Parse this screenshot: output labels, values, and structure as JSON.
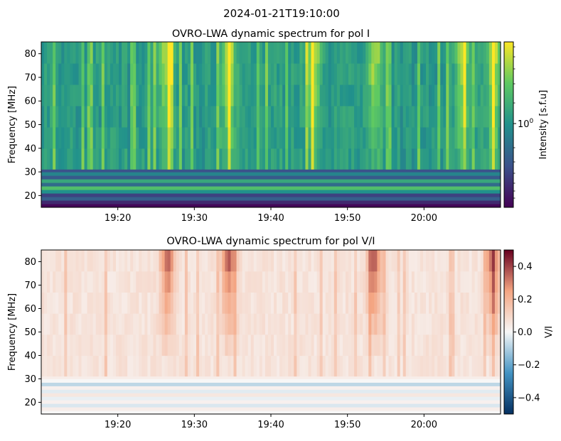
{
  "suptitle": "2024-01-21T19:10:00",
  "chart_data": [
    {
      "type": "heatmap",
      "title": "OVRO-LWA dynamic spectrum for pol I",
      "xlabel": "",
      "ylabel": "Frequency [MHz]",
      "x_ticks": [
        "19:20",
        "19:30",
        "19:40",
        "19:50",
        "20:00"
      ],
      "x_tick_minutes": [
        10,
        20,
        30,
        40,
        50
      ],
      "xlim_minutes": [
        0,
        60
      ],
      "x_start": "2024-01-21T19:10:00",
      "y_ticks": [
        20,
        30,
        40,
        50,
        60,
        70,
        80
      ],
      "ylim": [
        15,
        85
      ],
      "colormap": "viridis",
      "colorbar": {
        "label": "Intensity [s.f.u]",
        "scale": "log",
        "tick_labels": [
          "10^0"
        ],
        "colors": [
          "#440154",
          "#3b528b",
          "#21918c",
          "#5ec962",
          "#fde725"
        ]
      },
      "features": {
        "bright_bursts_minutes": [
          16.5,
          24.5,
          35.5,
          43.5,
          55,
          59
        ]
      }
    },
    {
      "type": "heatmap",
      "title": "OVRO-LWA dynamic spectrum for pol V/I",
      "xlabel": "",
      "ylabel": "Frequency [MHz]",
      "x_ticks": [
        "19:20",
        "19:30",
        "19:40",
        "19:50",
        "20:00"
      ],
      "x_tick_minutes": [
        10,
        20,
        30,
        40,
        50
      ],
      "xlim_minutes": [
        0,
        60
      ],
      "y_ticks": [
        20,
        30,
        40,
        50,
        60,
        70,
        80
      ],
      "ylim": [
        15,
        85
      ],
      "colormap": "RdBu_r",
      "colorbar": {
        "label": "V/I",
        "range": [
          -0.5,
          0.5
        ],
        "ticks": [
          -0.4,
          -0.2,
          0.0,
          0.2,
          0.4
        ],
        "tick_labels": [
          "−0.4",
          "−0.2",
          "0.0",
          "0.2",
          "0.4"
        ],
        "colors": [
          "#053061",
          "#4393c3",
          "#f7f7f7",
          "#f4a582",
          "#67001f"
        ]
      },
      "features": {
        "strong_positive_bursts_minutes": [
          16.5,
          24.5,
          43.5,
          59
        ]
      }
    }
  ]
}
